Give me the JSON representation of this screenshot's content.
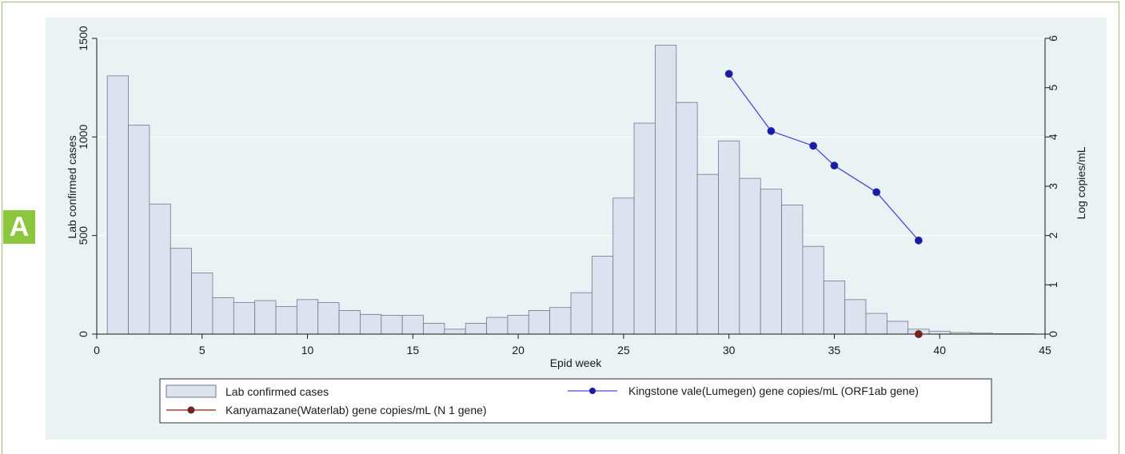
{
  "panel_label": "A",
  "colors": {
    "panel_background": "#eaf2f3",
    "bar_fill": "#dde3ee",
    "bar_stroke": "#6a7a94",
    "line_series": "#4a4ad8",
    "marker_blue": "#1a1aa8",
    "marker_red": "#8b1a1a",
    "gridline": "#ffffff",
    "badge": "#8cc63f"
  },
  "chart_data": {
    "type": "bar",
    "title": "",
    "xlabel": "Epid week",
    "ylabel": "Lab confirmed cases",
    "y2label": "Log copies/mL",
    "xlim": [
      0,
      45
    ],
    "ylim": [
      0,
      1500
    ],
    "y2lim": [
      0,
      6
    ],
    "x_ticks": [
      0,
      5,
      10,
      15,
      20,
      25,
      30,
      35,
      40,
      45
    ],
    "y_ticks": [
      0,
      500,
      1000,
      1500
    ],
    "y2_ticks": [
      0,
      1,
      2,
      3,
      4,
      5,
      6
    ],
    "grid": true,
    "legend_position": "bottom",
    "bars": {
      "name": "Lab confirmed cases",
      "x": [
        1,
        2,
        3,
        4,
        5,
        6,
        7,
        8,
        9,
        10,
        11,
        12,
        13,
        14,
        15,
        16,
        17,
        18,
        19,
        20,
        21,
        22,
        23,
        24,
        25,
        26,
        27,
        28,
        29,
        30,
        31,
        32,
        33,
        34,
        35,
        36,
        37,
        38,
        39,
        40,
        41,
        42,
        43,
        44
      ],
      "values": [
        1310,
        1060,
        660,
        435,
        310,
        185,
        160,
        170,
        140,
        175,
        160,
        120,
        100,
        95,
        95,
        55,
        25,
        55,
        85,
        95,
        120,
        135,
        210,
        395,
        690,
        1070,
        1465,
        1175,
        810,
        980,
        790,
        735,
        655,
        445,
        270,
        175,
        105,
        65,
        25,
        15,
        8,
        5,
        2,
        2
      ]
    },
    "series": [
      {
        "name": "Kingstone vale(Lumegen) gene copies/mL (ORF1ab gene)",
        "axis": "right",
        "x": [
          30,
          32,
          34,
          35,
          37,
          39
        ],
        "values": [
          5.28,
          4.12,
          3.82,
          3.42,
          2.88,
          1.9
        ]
      },
      {
        "name": "Kanyamazane(Waterlab) gene copies/mL (N 1 gene)",
        "axis": "right",
        "x": [
          39
        ],
        "values": [
          0
        ]
      }
    ]
  }
}
